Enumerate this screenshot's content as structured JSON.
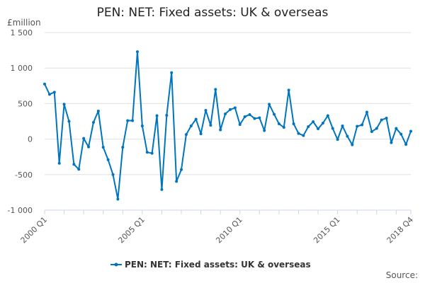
{
  "chart_data": {
    "type": "line",
    "title": "PEN: NET: Fixed assets: UK & overseas",
    "ylabel": "£million",
    "source_label": "Source:",
    "ylim": [
      -1000,
      1500
    ],
    "yticks": [
      -1000,
      -500,
      0,
      500,
      1000,
      1500
    ],
    "ytick_labels": [
      "-1 000",
      "-500",
      "0",
      "500",
      "1 000",
      "1 500"
    ],
    "xtick_labels": [
      "2000 Q1",
      "2005 Q1",
      "2010 Q1",
      "2015 Q1",
      "2018 Q4"
    ],
    "xtick_indices": [
      0,
      20,
      40,
      60,
      75
    ],
    "grid": true,
    "legend_position": "bottom",
    "color": "#0075bf",
    "series": [
      {
        "name": "PEN: NET: Fixed assets: UK & overseas",
        "start": "2000 Q1",
        "end": "2018 Q4",
        "values": [
          775,
          630,
          660,
          -340,
          490,
          250,
          -355,
          -425,
          10,
          -110,
          235,
          395,
          -115,
          -290,
          -500,
          -845,
          -115,
          260,
          260,
          1230,
          185,
          -185,
          -200,
          330,
          -710,
          335,
          935,
          -595,
          -430,
          65,
          185,
          280,
          75,
          405,
          195,
          700,
          130,
          355,
          415,
          440,
          205,
          315,
          345,
          290,
          300,
          120,
          490,
          350,
          215,
          165,
          690,
          215,
          80,
          50,
          175,
          245,
          145,
          225,
          330,
          150,
          -5,
          185,
          40,
          -80,
          180,
          200,
          380,
          105,
          150,
          270,
          295,
          -50,
          150,
          70,
          -75,
          110
        ]
      }
    ]
  }
}
